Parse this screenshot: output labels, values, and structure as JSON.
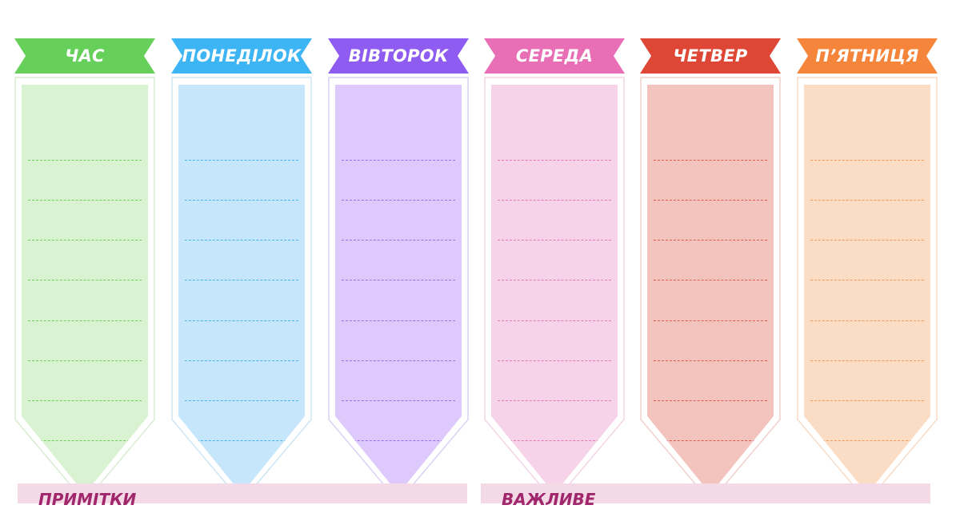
{
  "columns": [
    {
      "label": "ЧАС",
      "banner_color": "#67d05a",
      "body_color": "#d9f2d1",
      "line_color": "#6fcf5c",
      "border_color": "#d8ecd2"
    },
    {
      "label": "ПОНЕДІЛОК",
      "banner_color": "#3db5f4",
      "body_color": "#c6e6fb",
      "line_color": "#48b4ee",
      "border_color": "#cfe5f3"
    },
    {
      "label": "ВІВТОРОК",
      "banner_color": "#8f5cf2",
      "body_color": "#ddc9fb",
      "line_color": "#9a6fe9",
      "border_color": "#dcd0f3"
    },
    {
      "label": "СЕРЕДА",
      "banner_color": "#e86fb6",
      "body_color": "#f6d3e8",
      "line_color": "#e477b6",
      "border_color": "#f2d5e6"
    },
    {
      "label": "ЧЕТВЕР",
      "banner_color": "#de4636",
      "body_color": "#f3c3bd",
      "line_color": "#dd5b4e",
      "border_color": "#f1d0cc"
    },
    {
      "label": "П’ЯТНИЦЯ",
      "banner_color": "#f5853a",
      "body_color": "#fbdcc4",
      "line_color": "#f39a5a",
      "border_color": "#f5dcc8"
    }
  ],
  "rows_per_column": 8,
  "panels": {
    "notes": {
      "label": "ПРИМІТКИ",
      "bg_color": "#f4d9e7"
    },
    "important": {
      "label": "ВАЖЛИВЕ",
      "bg_color": "#f4d9e7"
    }
  }
}
